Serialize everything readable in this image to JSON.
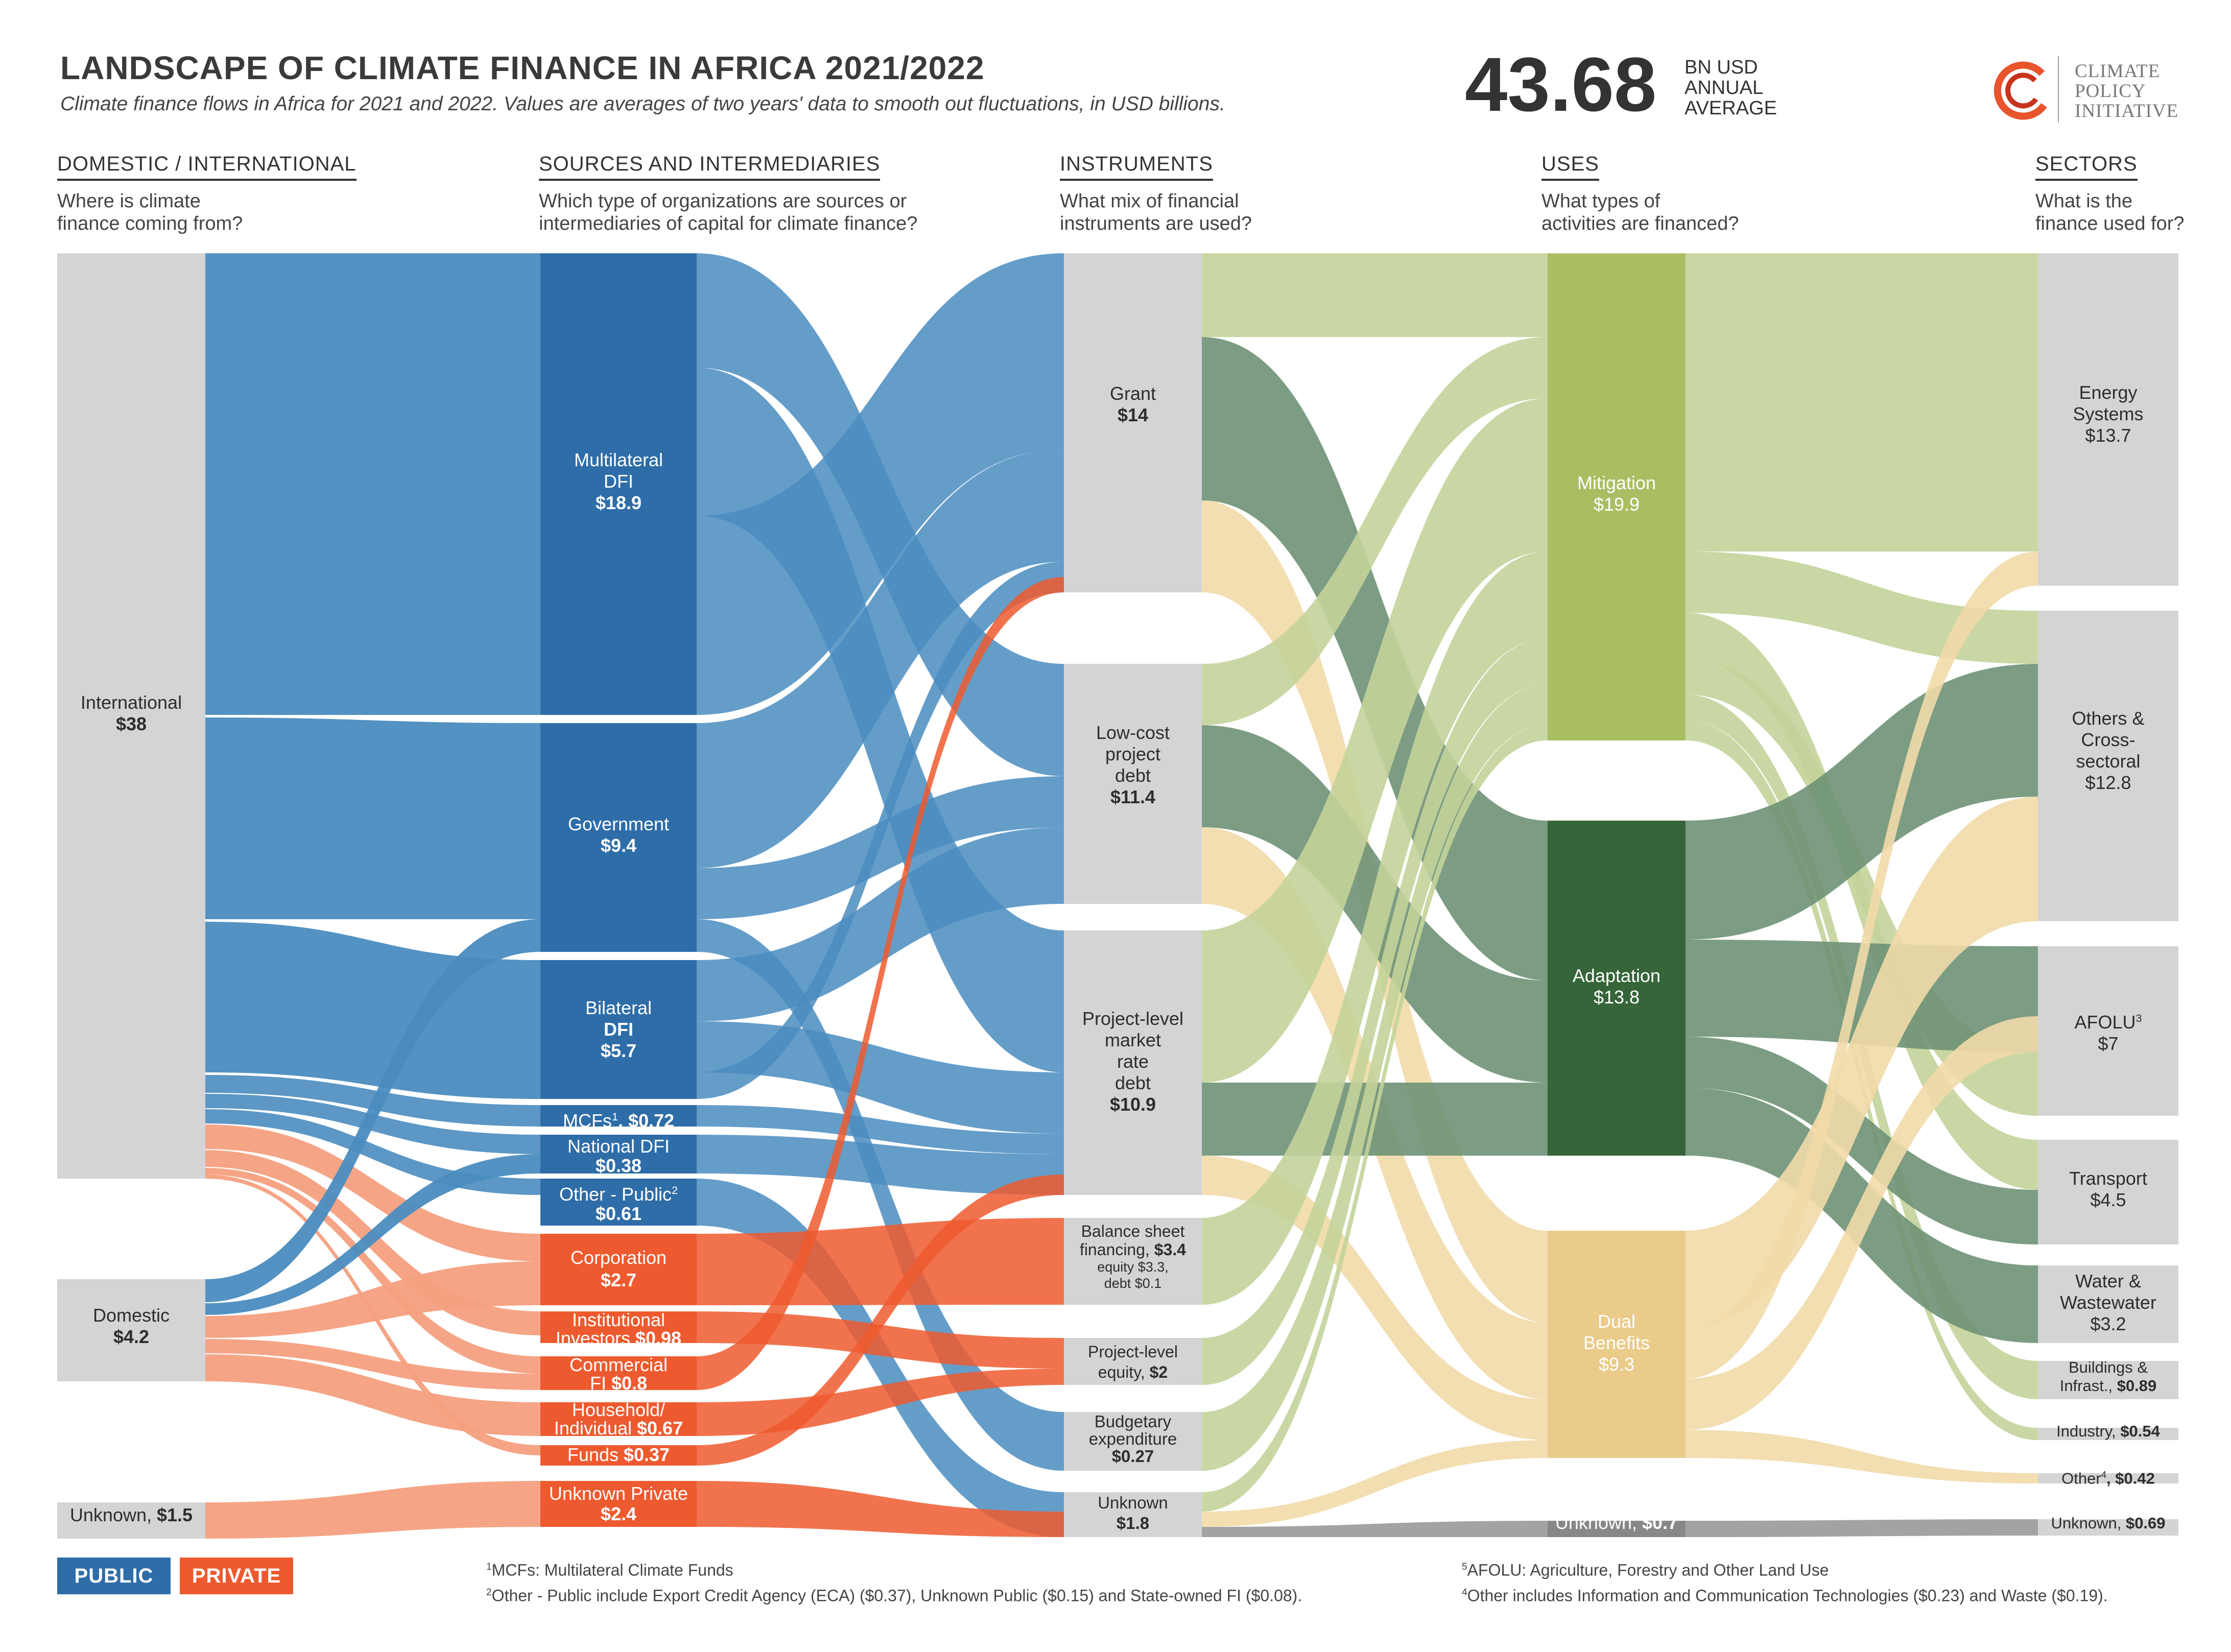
{
  "title": "LANDSCAPE OF CLIMATE FINANCE IN AFRICA 2021/2022",
  "subtitle": "Climate finance flows in Africa for 2021 and 2022. Values are averages of two years' data to smooth out fluctuations, in USD billions.",
  "total": {
    "value": "43.68",
    "unit_line1": "BN USD",
    "unit_line2": "ANNUAL",
    "unit_line3": "AVERAGE"
  },
  "logo": {
    "line1": "CLIMATE",
    "line2": "POLICY",
    "line3": "INITIATIVE"
  },
  "columns": [
    {
      "heading": "DOMESTIC / INTERNATIONAL",
      "q1": "Where is climate",
      "q2": "finance coming from?"
    },
    {
      "heading": "SOURCES AND INTERMEDIARIES",
      "q1": "Which type of organizations are sources or",
      "q2": "intermediaries of capital for climate finance?"
    },
    {
      "heading": "INSTRUMENTS",
      "q1": "What mix of financial",
      "q2": "instruments are used?"
    },
    {
      "heading": "USES",
      "q1": "What types of",
      "q2": "activities are financed?"
    },
    {
      "heading": "SECTORS",
      "q1": "What is the",
      "q2": "finance used for?"
    }
  ],
  "origin": {
    "international": {
      "name": "International",
      "value": "$38"
    },
    "domestic": {
      "name": "Domestic",
      "value": "$4.2"
    },
    "unknown": {
      "name": "Unknown,",
      "value": "$1.5"
    }
  },
  "sources": {
    "multilateral": {
      "l1": "Multilateral",
      "l2": "DFI",
      "value": "$18.9"
    },
    "government": {
      "l1": "Government",
      "value": "$9.4"
    },
    "bilateral": {
      "l1": "Bilateral",
      "l2": "DFI",
      "value": "$5.7"
    },
    "mcfs": {
      "l1": "MCFs",
      "sup": "1",
      "value": ", $0.72"
    },
    "national": {
      "l1": "National DFI",
      "value": "$0.38"
    },
    "other_public": {
      "l1": "Other - Public",
      "sup": "2",
      "value": "$0.61"
    },
    "corporation": {
      "l1": "Corporation",
      "value": "$2.7"
    },
    "institutional": {
      "l1": "Institutional",
      "l2": "Investors",
      "value": "$0.98"
    },
    "commercial": {
      "l1": "Commercial",
      "l2": "FI",
      "value": "$0.8"
    },
    "household": {
      "l1": "Household/",
      "l2": "Individual",
      "value": "$0.67"
    },
    "funds": {
      "l1": "Funds",
      "value": "$0.37"
    },
    "unknown_private": {
      "l1": "Unknown Private",
      "value": "$2.4"
    }
  },
  "instruments": {
    "grant": {
      "l1": "Grant",
      "value": "$14"
    },
    "lowcost": {
      "l1": "Low-cost",
      "l2": "project",
      "l3": "debt",
      "value": "$11.4"
    },
    "market": {
      "l1": "Project-level",
      "l2": "market",
      "l3": "rate",
      "l4": "debt",
      "value": "$10.9"
    },
    "balance": {
      "l1": "Balance sheet",
      "l2": "financing,",
      "value": "$3.4",
      "l3": "equity $3.3,",
      "l4": "debt $0.1"
    },
    "equity": {
      "l1": "Project-level",
      "l2": "equity,",
      "value": "$2"
    },
    "budgetary": {
      "l1": "Budgetary",
      "l2": "expenditure",
      "value": "$0.27"
    },
    "unknown": {
      "l1": "Unknown",
      "value": "$1.8"
    }
  },
  "uses": {
    "mitigation": {
      "l1": "Mitigation",
      "value": "$19.9"
    },
    "adaptation": {
      "l1": "Adaptation",
      "value": "$13.8"
    },
    "dual": {
      "l1": "Dual",
      "l2": "Benefits",
      "value": "$9.3"
    },
    "unknown": {
      "l1": "Unknown,",
      "value": "$0.7"
    }
  },
  "sectors": {
    "energy": {
      "l1": "Energy",
      "l2": "Systems",
      "value": "$13.7"
    },
    "others": {
      "l1": "Others &",
      "l2": "Cross-",
      "l3": "sectoral",
      "value": "$12.8"
    },
    "afolu": {
      "l1": "AFOLU",
      "sup": "3",
      "value": "$7"
    },
    "transport": {
      "l1": "Transport",
      "value": "$4.5"
    },
    "water": {
      "l1": "Water &",
      "l2": "Wastewater",
      "value": "$3.2"
    },
    "buildings": {
      "l1": "Buildings &",
      "l2": "Infrast.,",
      "value": "$0.89"
    },
    "industry": {
      "l1": "Industry,",
      "value": "$0.54"
    },
    "other": {
      "l1": "Other",
      "sup": "4",
      "value": ", $0.42"
    },
    "unknown": {
      "l1": "Unknown,",
      "value": "$0.69"
    }
  },
  "legend": {
    "public": "PUBLIC",
    "private": "PRIVATE"
  },
  "footnotes": {
    "f1": {
      "sup": "1",
      "text": "MCFs: Multilateral Climate Funds"
    },
    "f2": {
      "sup": "2",
      "text": "Other - Public include Export Credit Agency (ECA) ($0.37), Unknown Public ($0.15) and State-owned FI ($0.08)."
    },
    "f5": {
      "sup": "5",
      "text": "AFOLU: Agriculture, Forestry and Other Land Use"
    },
    "f4": {
      "sup": "4",
      "text": "Other includes Information and Communication Technologies ($0.23) and Waste ($0.19)."
    }
  },
  "colors": {
    "public_dark": "#2E6DA8",
    "public_link": "#4A8CBF",
    "private_dark": "#EE5A2F",
    "private_link": "#F4A080",
    "node_grey": "#D4D4D6",
    "mitigation": "#A9BE62",
    "mitigation_link": "#C3D39A",
    "adaptation": "#356538",
    "adaptation_link": "#6E9275",
    "dual": "#EACB8A",
    "dual_link": "#F1DAA9",
    "unknown_link": "#999999"
  }
}
